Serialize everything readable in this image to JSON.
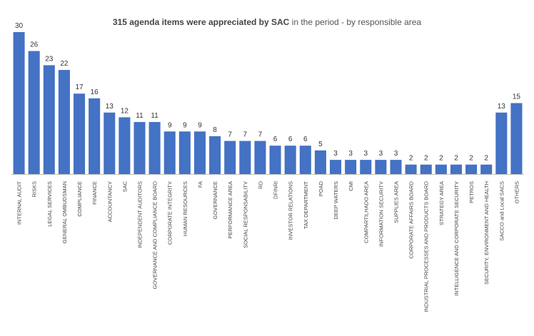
{
  "chart_data": {
    "type": "bar",
    "title_bold": "315 agenda items were appreciated by SAC",
    "title_rest": " in the period - by responsible area",
    "xlabel": "",
    "ylabel": "",
    "ylim": [
      0,
      30
    ],
    "grid": false,
    "bar_color": "#4472c4",
    "categories": [
      "INTERNAL AUDIT",
      "RISKS",
      "LEGAL SERVICES",
      "GENERAL OMBUDSMAN",
      "COMPLIANCE",
      "FINANCE",
      "ACCOUNTANCY",
      "SAC",
      "INDEPENDENT AUDITORS",
      "GOVERNANCE AND COMPLIANCE BOARD",
      "CORPORATE INTEGRITY",
      "HUMAN RESOURCES",
      "FA",
      "GOVERNANCE",
      "PERFORMANCE AREA",
      "SOCIAL RESPONSABILITY",
      "RD",
      "DFINRI",
      "INVESTOR RELATIONS",
      "TAX DEPARTMENT",
      "POAD",
      "DEEP WATERS",
      "CMI",
      "COMPARTILHADO AREA",
      "INFORMATION SECURITY",
      "SUPPLIES AREA",
      "CORPORATE AFFAIRS BOARD",
      "INDUSTRIAL PROCESSES AND PRODUCTS BOARD",
      "STRATEGY AREA",
      "INTELLIGENCE AND CORPORATE SECURITY",
      "PETROS",
      "SECURITY, ENVIRONMENT AND HEALTH",
      "SACCO and Local SACS",
      "OTHERS"
    ],
    "values": [
      30,
      26,
      23,
      22,
      17,
      16,
      13,
      12,
      11,
      11,
      9,
      9,
      9,
      8,
      7,
      7,
      7,
      6,
      6,
      6,
      5,
      3,
      3,
      3,
      3,
      3,
      2,
      2,
      2,
      2,
      2,
      2,
      13,
      15
    ]
  }
}
